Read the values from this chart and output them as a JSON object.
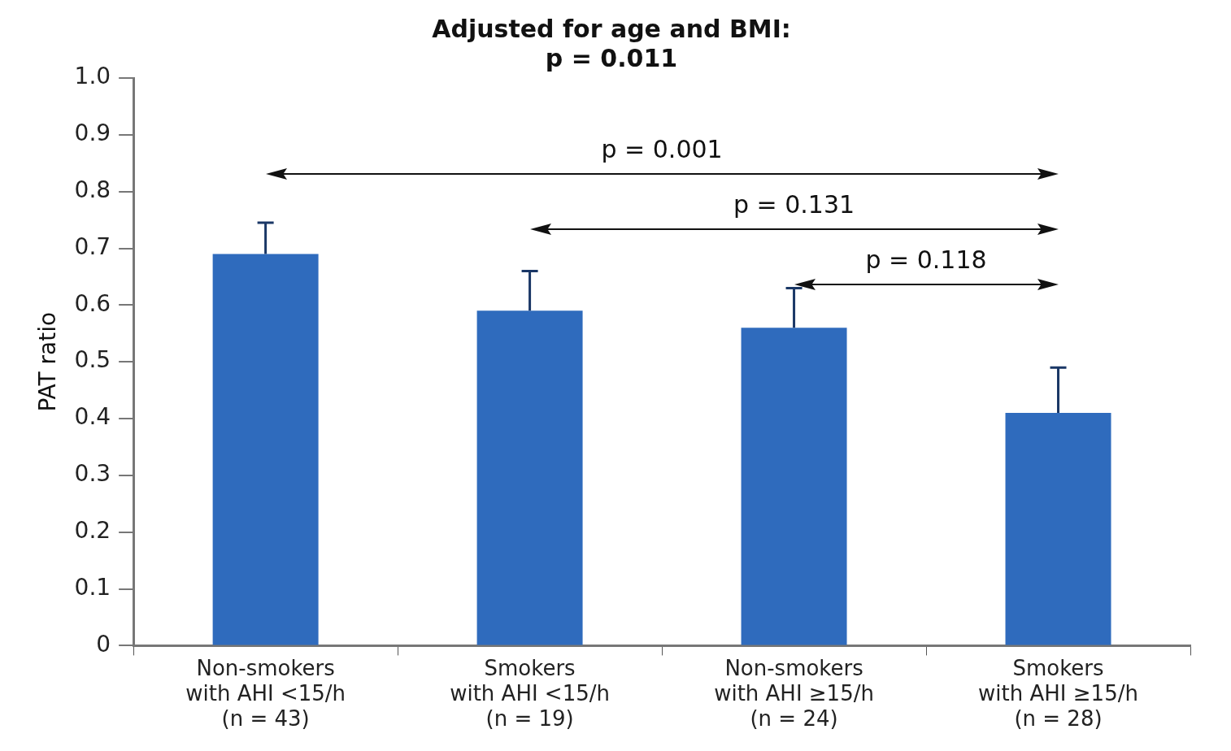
{
  "chart_data": {
    "type": "bar",
    "title": "Adjusted for age and BMI:\np = 0.011",
    "ylabel": "PAT ratio",
    "categories": [
      "Non-smokers\nwith AHI <15/h\n(n = 43)",
      "Smokers\nwith AHI <15/h\n(n = 19)",
      "Non-smokers\nwith AHI ≥15/h\n(n = 24)",
      "Smokers\nwith AHI ≥15/h\n(n = 28)"
    ],
    "values": [
      0.69,
      0.59,
      0.56,
      0.41
    ],
    "errors": [
      [
        0.69,
        0.745
      ],
      [
        0.59,
        0.66
      ],
      [
        0.56,
        0.63
      ],
      [
        0.41,
        0.49
      ]
    ],
    "color": "#2f6bbd",
    "ylim": [
      0,
      1
    ],
    "yticks": [
      0,
      0.1,
      0.2,
      0.3,
      0.4,
      0.5,
      0.6,
      0.7,
      0.8,
      0.9,
      {
        "value": 1,
        "label": "1.0"
      }
    ],
    "annotations": [
      "p = 0.001",
      "p = 0.131",
      "p = 0.118"
    ],
    "grid": false,
    "legend": false
  }
}
